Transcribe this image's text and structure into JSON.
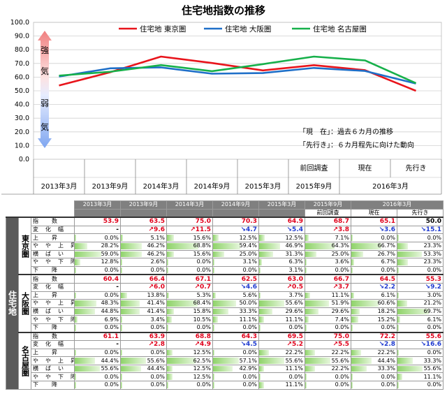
{
  "chart_data": {
    "type": "line",
    "title": "住宅地指数の推移",
    "categories": [
      "2013年3月",
      "2013年9月",
      "2014年3月",
      "2014年9月",
      "2015年3月",
      "2015年9月",
      "2016年3月 現在",
      "2016年3月 先行き"
    ],
    "series": [
      {
        "name": "住宅地 東京圏",
        "color": "#e8141b",
        "values": [
          53.9,
          63.5,
          75.0,
          70.3,
          64.9,
          68.7,
          65.1,
          50.0
        ]
      },
      {
        "name": "住宅地 大阪圏",
        "color": "#1e6fc8",
        "values": [
          60.4,
          66.4,
          67.1,
          62.5,
          63.0,
          66.7,
          64.5,
          55.3
        ]
      },
      {
        "name": "住宅地 名古屋圏",
        "color": "#16b04a",
        "values": [
          61.1,
          63.9,
          68.8,
          64.3,
          69.5,
          75.0,
          72.2,
          55.6
        ]
      }
    ],
    "ylim": [
      0,
      100
    ],
    "yticks": [
      "0.0",
      "10.0",
      "20.0",
      "30.0",
      "40.0",
      "50.0",
      "60.0",
      "70.0",
      "80.0",
      "90.0",
      "100.0"
    ],
    "xlabels_top": [
      "",
      "",
      "",
      "",
      "",
      "前回調査",
      "現在",
      "先行き"
    ],
    "xlabels_bottom": [
      "2013年3月",
      "2013年9月",
      "2014年3月",
      "2014年9月",
      "2015年3月",
      "2015年9月",
      "2016年3月"
    ],
    "arrow_labels": [
      "強",
      "気",
      "弱",
      "気"
    ],
    "notes": [
      "「現　在」：過去６カ月の推移",
      "「先行き」：６カ月程先に向けた動向"
    ],
    "legend": "top",
    "grid": true
  },
  "table": {
    "group_label": "住宅地",
    "headers": [
      "2013年3月",
      "2013年9月",
      "2014年3月",
      "2014年9月",
      "2015年3月",
      "2015年9月",
      "2016年3月"
    ],
    "subheaders": [
      "前回調査",
      "現在",
      "先行き"
    ],
    "row_labels": [
      "指　　数",
      "変　化　幅",
      "上　　昇",
      "や　や　上　昇",
      "横　ば　い",
      "や　や　下　降",
      "下　　降"
    ],
    "regions": [
      {
        "name": "東京圏",
        "index": [
          "53.9",
          "63.5",
          "75.0",
          "70.3",
          "64.9",
          "68.7",
          "65.1",
          "50.0"
        ],
        "index_color": [
          "red",
          "red",
          "red",
          "red",
          "red",
          "red",
          "red",
          "blk"
        ],
        "change": [
          "-",
          "↗9.6",
          "↗11.5",
          "↘4.7",
          "↘5.4",
          "↗3.8",
          "↘3.6",
          "↘15.1"
        ],
        "change_color": [
          "blk",
          "red",
          "red",
          "blue",
          "blue",
          "red",
          "blue",
          "blue"
        ],
        "pcts": [
          [
            0.0,
            5.1,
            15.6,
            12.5,
            12.5,
            7.1,
            0.0,
            0.0
          ],
          [
            28.2,
            46.2,
            68.8,
            59.4,
            46.9,
            64.3,
            66.7,
            23.3
          ],
          [
            59.0,
            46.2,
            15.6,
            25.0,
            31.3,
            25.0,
            26.7,
            53.3
          ],
          [
            12.8,
            2.6,
            0.0,
            3.1,
            6.3,
            3.6,
            6.7,
            23.3
          ],
          [
            0.0,
            0.0,
            0.0,
            0.0,
            3.1,
            0.0,
            0.0,
            0.0
          ]
        ]
      },
      {
        "name": "大阪圏",
        "index": [
          "60.4",
          "66.4",
          "67.1",
          "62.5",
          "63.0",
          "66.7",
          "64.5",
          "55.3"
        ],
        "index_color": [
          "red",
          "red",
          "red",
          "red",
          "red",
          "red",
          "red",
          "red"
        ],
        "change": [
          "-",
          "↗6.0",
          "↗0.7",
          "↘4.6",
          "↗0.5",
          "↗3.7",
          "↘2.2",
          "↘9.2"
        ],
        "change_color": [
          "blk",
          "red",
          "red",
          "blue",
          "red",
          "red",
          "blue",
          "blue"
        ],
        "pcts": [
          [
            0.0,
            13.8,
            5.3,
            5.6,
            3.7,
            11.1,
            6.1,
            3.0
          ],
          [
            48.3,
            41.4,
            68.4,
            50.0,
            55.6,
            51.9,
            60.6,
            21.2
          ],
          [
            44.8,
            41.4,
            15.8,
            33.3,
            29.6,
            29.6,
            18.2,
            69.7
          ],
          [
            6.9,
            3.4,
            10.5,
            11.1,
            11.1,
            7.4,
            15.2,
            6.1
          ],
          [
            0.0,
            0.0,
            0.0,
            0.0,
            0.0,
            0.0,
            0.0,
            0.0
          ]
        ]
      },
      {
        "name": "名古屋圏",
        "index": [
          "61.1",
          "63.9",
          "68.8",
          "64.3",
          "69.5",
          "75.0",
          "72.2",
          "55.6"
        ],
        "index_color": [
          "red",
          "red",
          "red",
          "red",
          "red",
          "red",
          "red",
          "red"
        ],
        "change": [
          "-",
          "↗2.8",
          "↗4.9",
          "↘4.5",
          "↗5.2",
          "↗5.5",
          "↘2.8",
          "↘16.6"
        ],
        "change_color": [
          "blk",
          "red",
          "red",
          "blue",
          "red",
          "red",
          "blue",
          "blue"
        ],
        "pcts": [
          [
            0.0,
            0.0,
            12.5,
            0.0,
            22.2,
            22.2,
            22.2,
            0.0
          ],
          [
            44.4,
            55.6,
            62.5,
            57.1,
            55.6,
            55.6,
            44.4,
            33.3
          ],
          [
            55.6,
            44.4,
            12.5,
            42.9,
            11.1,
            22.2,
            33.3,
            55.6
          ],
          [
            0.0,
            0.0,
            12.5,
            0.0,
            0.0,
            0.0,
            0.0,
            11.1
          ],
          [
            0.0,
            0.0,
            0.0,
            0.0,
            11.1,
            0.0,
            0.0,
            0.0
          ]
        ]
      }
    ]
  }
}
